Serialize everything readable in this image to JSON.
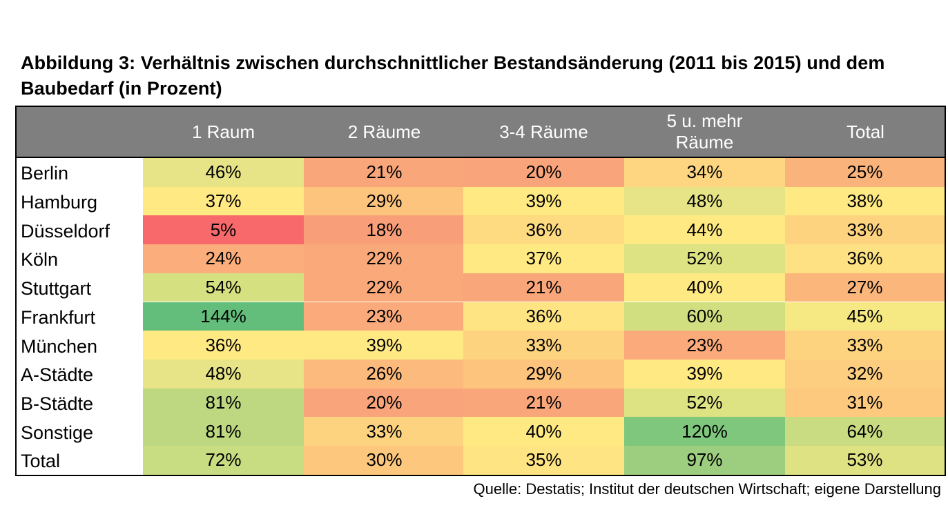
{
  "title": "Abbildung 3: Verhältnis zwischen durchschnittlicher Bestandsänderung (2011 bis 2015) und dem Baubedarf (in Prozent)",
  "source": "Quelle: Destatis; Institut der deutschen Wirtschaft; eigene Darstellung",
  "chart_data": {
    "type": "heatmap",
    "title": "Abbildung 3: Verhältnis zwischen durchschnittlicher Bestandsänderung (2011 bis 2015) und dem Baubedarf (in Prozent)",
    "columns": [
      "1 Raum",
      "2 Räume",
      "3-4 Räume",
      "5 u. mehr Räume",
      "Total"
    ],
    "rows": [
      "Berlin",
      "Hamburg",
      "Düsseldorf",
      "Köln",
      "Stuttgart",
      "Frankfurt",
      "München",
      "A-Städte",
      "B-Städte",
      "Sonstige",
      "Total"
    ],
    "values": [
      [
        46,
        21,
        20,
        34,
        25
      ],
      [
        37,
        29,
        39,
        48,
        38
      ],
      [
        5,
        18,
        36,
        44,
        33
      ],
      [
        24,
        22,
        37,
        52,
        36
      ],
      [
        54,
        22,
        21,
        40,
        27
      ],
      [
        144,
        23,
        36,
        60,
        45
      ],
      [
        36,
        39,
        33,
        23,
        33
      ],
      [
        48,
        26,
        29,
        39,
        32
      ],
      [
        81,
        20,
        21,
        52,
        31
      ],
      [
        81,
        33,
        40,
        120,
        64
      ],
      [
        72,
        30,
        35,
        97,
        53
      ]
    ],
    "labels": [
      [
        "46%",
        "21%",
        "20%",
        "34%",
        "25%"
      ],
      [
        "37%",
        "29%",
        "39%",
        "48%",
        "38%"
      ],
      [
        "5%",
        "18%",
        "36%",
        "44%",
        "33%"
      ],
      [
        "24%",
        "22%",
        "37%",
        "52%",
        "36%"
      ],
      [
        "54%",
        "22%",
        "21%",
        "40%",
        "27%"
      ],
      [
        "144%",
        "23%",
        "36%",
        "60%",
        "45%"
      ],
      [
        "36%",
        "39%",
        "33%",
        "23%",
        "33%"
      ],
      [
        "48%",
        "26%",
        "29%",
        "39%",
        "32%"
      ],
      [
        "81%",
        "20%",
        "21%",
        "52%",
        "31%"
      ],
      [
        "81%",
        "33%",
        "40%",
        "120%",
        "64%"
      ],
      [
        "72%",
        "30%",
        "35%",
        "97%",
        "53%"
      ]
    ],
    "colors": [
      [
        "#e6e487",
        "#f9a67a",
        "#f9a47a",
        "#fed580",
        "#fbb37c"
      ],
      [
        "#fee983",
        "#fdc47e",
        "#fee983",
        "#e6e487",
        "#fee983"
      ],
      [
        "#f8696b",
        "#f89e78",
        "#feda81",
        "#fee983",
        "#fed380"
      ],
      [
        "#fbae7b",
        "#faa97a",
        "#fee983",
        "#dde283",
        "#fee182"
      ],
      [
        "#d5e081",
        "#faa97a",
        "#f9a67a",
        "#fee983",
        "#fbb67c"
      ],
      [
        "#63be7b",
        "#fbaa7b",
        "#fee482",
        "#d1df81",
        "#f6e883"
      ],
      [
        "#fee983",
        "#fee983",
        "#fdd380",
        "#fbab7b",
        "#fed380"
      ],
      [
        "#e6e487",
        "#fcba7d",
        "#fdc47e",
        "#fee983",
        "#fece80"
      ],
      [
        "#bdd881",
        "#f9a47a",
        "#f9a67a",
        "#dde283",
        "#fdc97f"
      ],
      [
        "#bdd881",
        "#fed380",
        "#fee983",
        "#7fc77c",
        "#c9dc81"
      ],
      [
        "#c8dc81",
        "#fdc87e",
        "#fee482",
        "#9dce7f",
        "#dfe283"
      ]
    ]
  }
}
